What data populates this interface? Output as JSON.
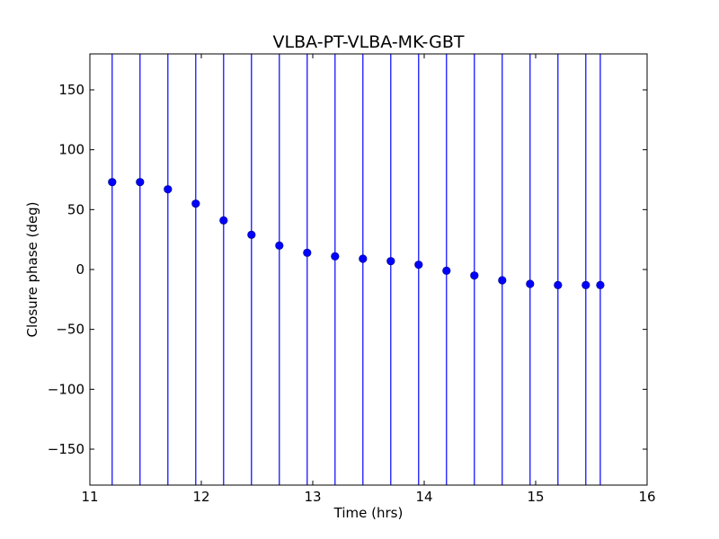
{
  "chart_data": {
    "type": "scatter",
    "title": "VLBA-PT-VLBA-MK-GBT",
    "xlabel": "Time (hrs)",
    "ylabel": "Closure phase (deg)",
    "xlim": [
      11,
      16
    ],
    "ylim": [
      -180,
      180
    ],
    "xticks": [
      11,
      12,
      13,
      14,
      15,
      16
    ],
    "yticks": [
      -150,
      -100,
      -50,
      0,
      50,
      100,
      150
    ],
    "xtick_labels": [
      "11",
      "12",
      "13",
      "14",
      "15",
      "16"
    ],
    "ytick_labels": [
      "−150",
      "−100",
      "−50",
      "0",
      "50",
      "100",
      "150"
    ],
    "grid": false,
    "series": [
      {
        "x": [
          11.2,
          11.45,
          11.7,
          11.95,
          12.2,
          12.45,
          12.7,
          12.95,
          13.2,
          13.45,
          13.7,
          13.95,
          14.2,
          14.45,
          14.7,
          14.95,
          15.2,
          15.45,
          15.58
        ],
        "y": [
          73,
          73,
          67,
          55,
          41,
          29,
          20,
          14,
          11,
          9,
          7,
          4,
          -1,
          -5,
          -9,
          -12,
          -13,
          -13,
          -13
        ],
        "error_low": [
          -180,
          -180,
          -180,
          -180,
          -180,
          -180,
          -180,
          -180,
          -180,
          -180,
          -180,
          -180,
          -180,
          -180,
          -180,
          -180,
          -180,
          -180,
          -180
        ],
        "error_high": [
          180,
          180,
          180,
          180,
          180,
          180,
          180,
          180,
          180,
          180,
          180,
          180,
          180,
          180,
          180,
          180,
          180,
          180,
          180
        ],
        "color": "#0000ff",
        "marker": "circle"
      }
    ]
  }
}
